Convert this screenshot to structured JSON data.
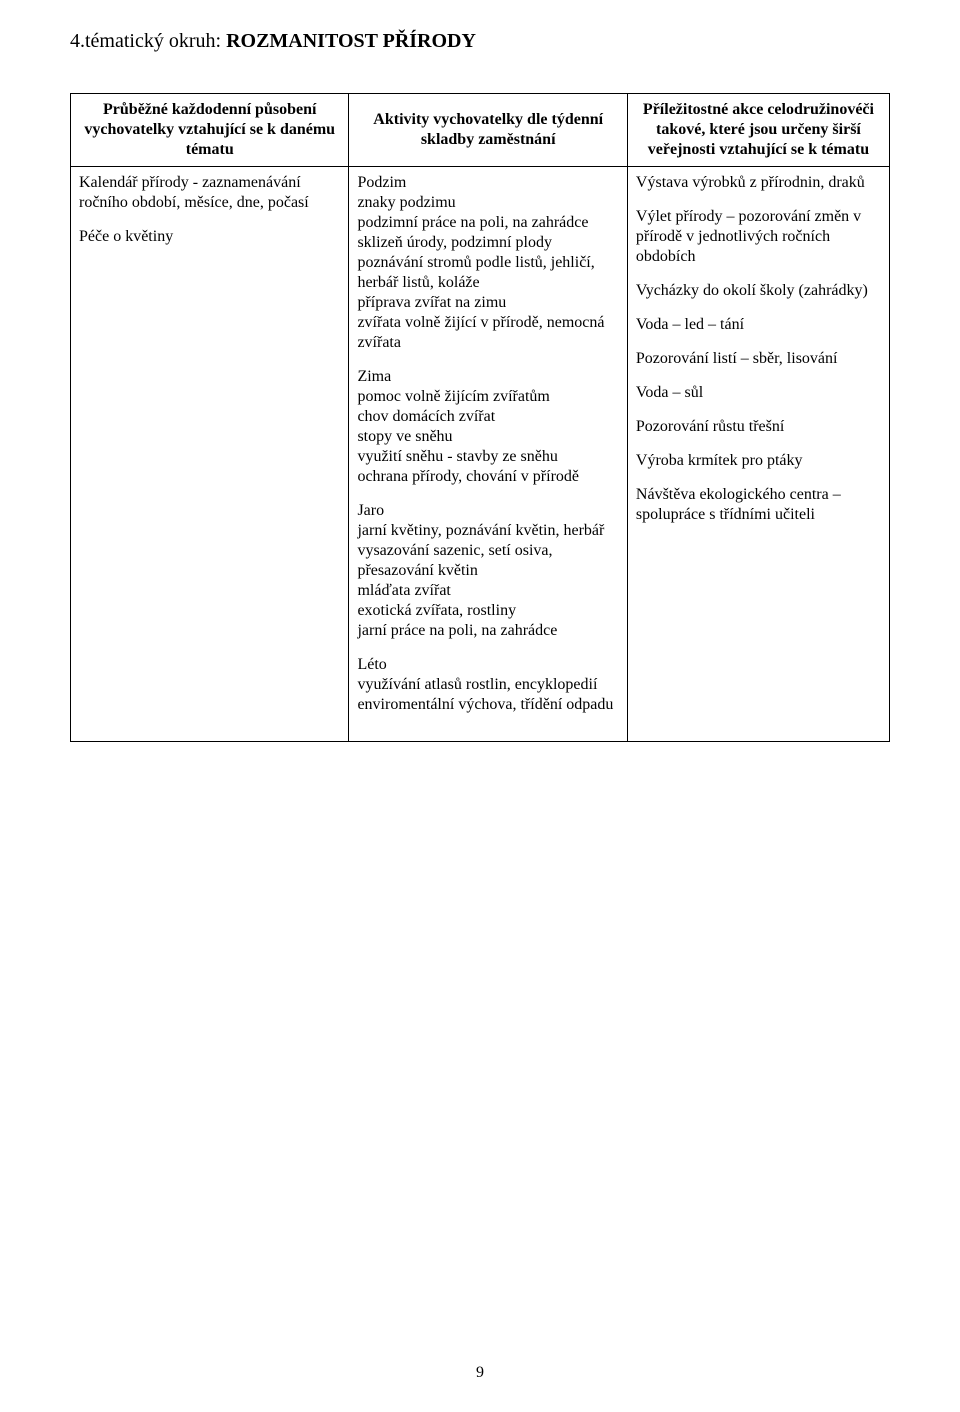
{
  "title": {
    "prefix": "4.tématický okruh: ",
    "main": "ROZMANITOST PŘÍRODY"
  },
  "headers": {
    "col1": "Průběžné každodenní působení vychovatelky vztahující se k danému tématu",
    "col2": "Aktivity vychovatelky dle týdenní skladby zaměstnání",
    "col3": "Příležitostné akce celodružinovéči takové, které jsou určeny širší veřejnosti vztahující se k tématu"
  },
  "col1_body": {
    "p1": "Kalendář přírody - zaznamenávání ročního období, měsíce, dne, počasí",
    "p2": "Péče o květiny"
  },
  "col2_body": {
    "autumn_heading": "Podzim",
    "autumn_lines": {
      "l1": "znaky podzimu",
      "l2": "podzimní práce na poli, na zahrádce",
      "l3": "sklizeň úrody, podzimní plody",
      "l4": "poznávání stromů podle listů, jehličí,",
      "l5": "herbář listů, koláže",
      "l6": "příprava zvířat na zimu",
      "l7": "zvířata volně žijící v přírodě, nemocná zvířata"
    },
    "winter_heading": "Zima",
    "winter_lines": {
      "l1": "pomoc volně žijícím zvířatům",
      "l2": "chov domácích zvířat",
      "l3": "stopy ve sněhu",
      "l4": "využití sněhu - stavby ze sněhu",
      "l5": "ochrana přírody, chování v přírodě"
    },
    "spring_heading": "Jaro",
    "spring_lines": {
      "l1": "jarní květiny, poznávání květin, herbář",
      "l2": "vysazování sazenic, setí osiva, přesazování květin",
      "l3": "mláďata zvířat",
      "l4": "exotická zvířata, rostliny",
      "l5": "jarní práce na poli, na zahrádce"
    },
    "summer_heading": "Léto",
    "summer_lines": {
      "l1": "využívání atlasů rostlin, encyklopedií",
      "l2": "enviromentální výchova, třídění odpadu"
    }
  },
  "col3_body": {
    "p1": "Výstava výrobků z přírodnin, draků",
    "p2": "Výlet přírody – pozorování změn v přírodě v jednotlivých ročních obdobích",
    "p3": "Vycházky do okolí školy (zahrádky)",
    "p4": "Voda – led – tání",
    "p5": "Pozorování listí – sběr, lisování",
    "p6": "Voda – sůl",
    "p7": "Pozorování růstu třešní",
    "p8": "Výroba krmítek pro ptáky",
    "p9": "Návštěva ekologického centra – spolupráce s třídními učiteli"
  },
  "page_number": "9"
}
